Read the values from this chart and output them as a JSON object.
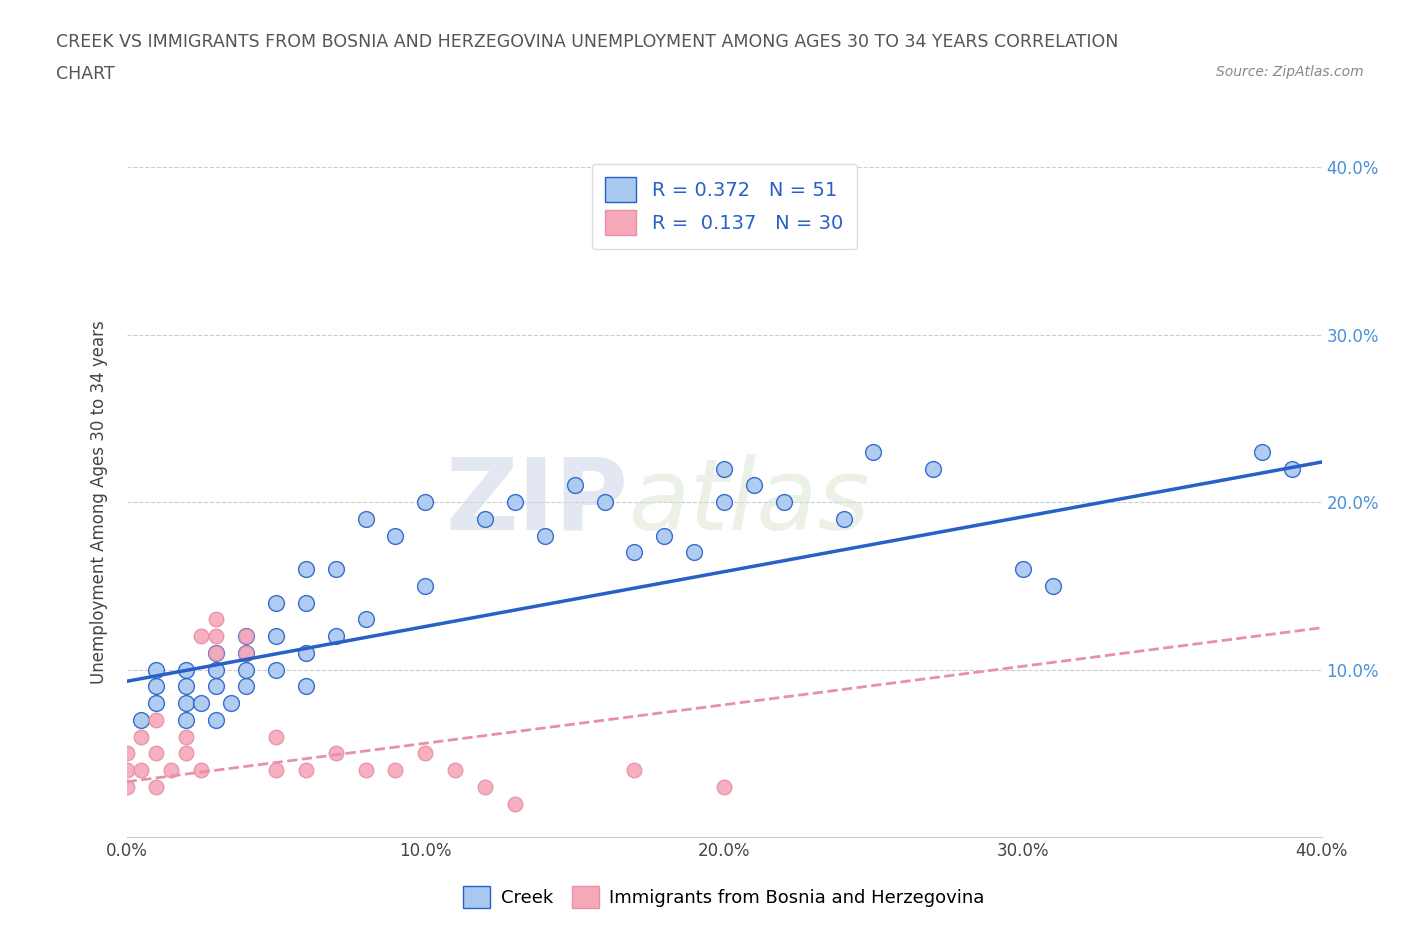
{
  "title_line1": "CREEK VS IMMIGRANTS FROM BOSNIA AND HERZEGOVINA UNEMPLOYMENT AMONG AGES 30 TO 34 YEARS CORRELATION",
  "title_line2": "CHART",
  "source_text": "Source: ZipAtlas.com",
  "ylabel": "Unemployment Among Ages 30 to 34 years",
  "xmin": 0.0,
  "xmax": 0.4,
  "ymin": 0.0,
  "ymax": 0.4,
  "xtick_labels": [
    "0.0%",
    "10.0%",
    "20.0%",
    "30.0%",
    "40.0%"
  ],
  "xtick_vals": [
    0.0,
    0.1,
    0.2,
    0.3,
    0.4
  ],
  "ytick_labels": [
    "40.0%",
    "30.0%",
    "20.0%",
    "10.0%",
    ""
  ],
  "ytick_vals": [
    0.4,
    0.3,
    0.2,
    0.1,
    0.0
  ],
  "creek_color": "#a8c8f0",
  "bosnian_color": "#f5a8b8",
  "creek_line_color": "#2860c8",
  "bosnian_line_color": "#e890a8",
  "creek_R": 0.372,
  "creek_N": 51,
  "bosnian_R": 0.137,
  "bosnian_N": 30,
  "watermark_zip": "ZIP",
  "watermark_atlas": "atlas",
  "creek_scatter_x": [
    0.005,
    0.01,
    0.01,
    0.01,
    0.02,
    0.02,
    0.02,
    0.02,
    0.025,
    0.03,
    0.03,
    0.03,
    0.03,
    0.035,
    0.04,
    0.04,
    0.04,
    0.04,
    0.05,
    0.05,
    0.05,
    0.06,
    0.06,
    0.06,
    0.06,
    0.07,
    0.07,
    0.08,
    0.08,
    0.09,
    0.1,
    0.1,
    0.12,
    0.13,
    0.14,
    0.15,
    0.16,
    0.17,
    0.18,
    0.19,
    0.2,
    0.21,
    0.22,
    0.24,
    0.25,
    0.27,
    0.3,
    0.31,
    0.38,
    0.39,
    0.2
  ],
  "creek_scatter_y": [
    0.07,
    0.08,
    0.09,
    0.1,
    0.07,
    0.08,
    0.09,
    0.1,
    0.08,
    0.07,
    0.09,
    0.1,
    0.11,
    0.08,
    0.09,
    0.1,
    0.11,
    0.12,
    0.1,
    0.12,
    0.14,
    0.09,
    0.11,
    0.14,
    0.16,
    0.12,
    0.16,
    0.13,
    0.19,
    0.18,
    0.15,
    0.2,
    0.19,
    0.2,
    0.18,
    0.21,
    0.2,
    0.17,
    0.18,
    0.17,
    0.22,
    0.21,
    0.2,
    0.19,
    0.23,
    0.22,
    0.16,
    0.15,
    0.23,
    0.22,
    0.2
  ],
  "bosnian_scatter_x": [
    0.0,
    0.0,
    0.0,
    0.005,
    0.005,
    0.01,
    0.01,
    0.01,
    0.015,
    0.02,
    0.02,
    0.025,
    0.025,
    0.03,
    0.03,
    0.03,
    0.04,
    0.04,
    0.05,
    0.05,
    0.06,
    0.07,
    0.08,
    0.09,
    0.1,
    0.11,
    0.12,
    0.13,
    0.17,
    0.2
  ],
  "bosnian_scatter_y": [
    0.03,
    0.04,
    0.05,
    0.04,
    0.06,
    0.03,
    0.05,
    0.07,
    0.04,
    0.05,
    0.06,
    0.04,
    0.12,
    0.11,
    0.12,
    0.13,
    0.11,
    0.12,
    0.04,
    0.06,
    0.04,
    0.05,
    0.04,
    0.04,
    0.05,
    0.04,
    0.03,
    0.02,
    0.04,
    0.03
  ],
  "creek_line_x0": 0.0,
  "creek_line_y0": 0.093,
  "creek_line_x1": 0.4,
  "creek_line_y1": 0.224,
  "bosnian_line_x0": 0.0,
  "bosnian_line_y0": 0.033,
  "bosnian_line_x1": 0.4,
  "bosnian_line_y1": 0.125
}
